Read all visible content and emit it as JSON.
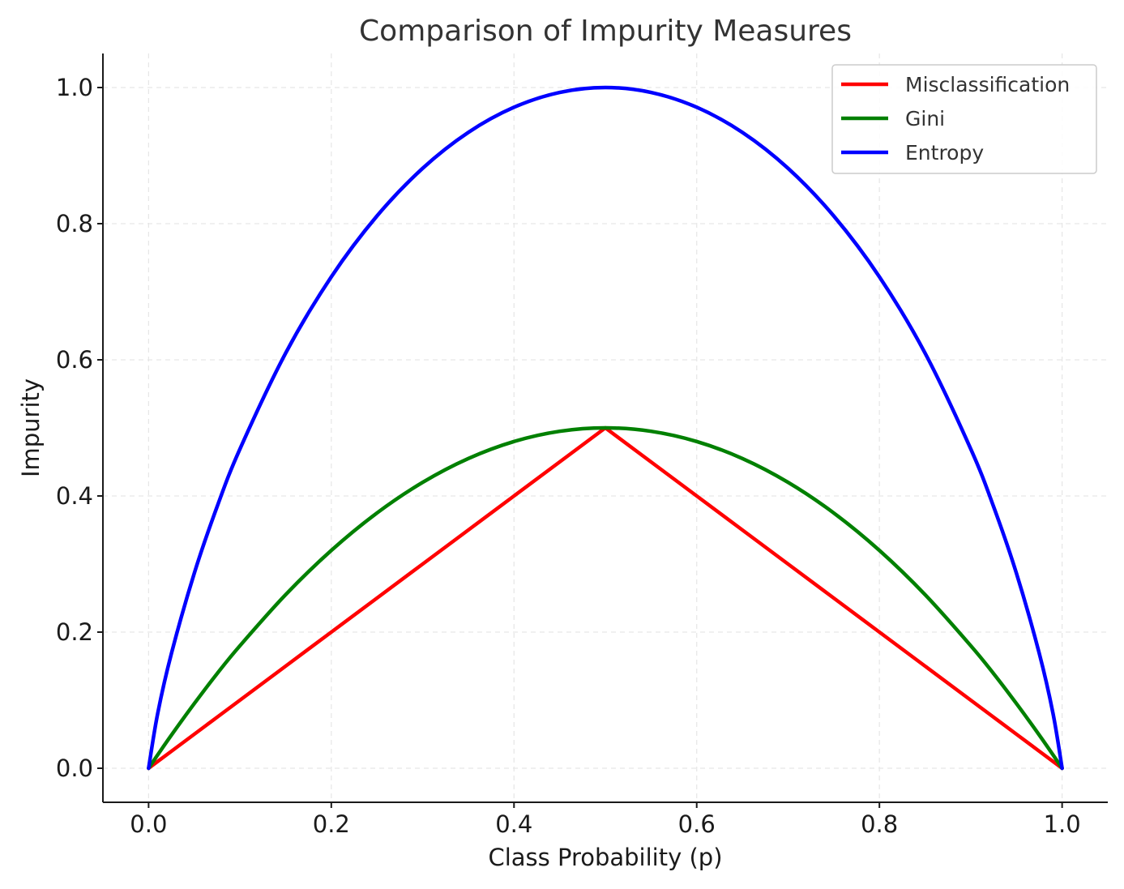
{
  "chart_data": {
    "type": "line",
    "title": "Comparison of Impurity Measures",
    "xlabel": "Class Probability (p)",
    "ylabel": "Impurity",
    "xlim": [
      -0.05,
      1.05
    ],
    "ylim": [
      -0.05,
      1.05
    ],
    "xticks": [
      "0.0",
      "0.2",
      "0.4",
      "0.6",
      "0.8",
      "1.0"
    ],
    "xtick_values": [
      0.0,
      0.2,
      0.4,
      0.6,
      0.8,
      1.0
    ],
    "yticks": [
      "0.0",
      "0.2",
      "0.4",
      "0.6",
      "0.8",
      "1.0"
    ],
    "ytick_values": [
      0.0,
      0.2,
      0.4,
      0.6,
      0.8,
      1.0
    ],
    "grid": true,
    "legend_position": "top-right",
    "x": [
      0.0,
      0.01,
      0.025,
      0.05,
      0.075,
      0.1,
      0.15,
      0.2,
      0.25,
      0.3,
      0.35,
      0.4,
      0.45,
      0.5,
      0.55,
      0.6,
      0.65,
      0.7,
      0.75,
      0.8,
      0.85,
      0.9,
      0.925,
      0.95,
      0.975,
      0.99,
      1.0
    ],
    "series": [
      {
        "name": "Misclassification",
        "color": "#ff0000",
        "values": [
          0.0,
          0.01,
          0.025,
          0.05,
          0.075,
          0.1,
          0.15,
          0.2,
          0.25,
          0.3,
          0.35,
          0.4,
          0.45,
          0.5,
          0.45,
          0.4,
          0.35,
          0.3,
          0.25,
          0.2,
          0.15,
          0.1,
          0.075,
          0.05,
          0.025,
          0.01,
          0.0
        ]
      },
      {
        "name": "Gini",
        "color": "#008000",
        "values": [
          0.0,
          0.0198,
          0.0488,
          0.095,
          0.139,
          0.18,
          0.255,
          0.32,
          0.375,
          0.42,
          0.455,
          0.48,
          0.495,
          0.5,
          0.495,
          0.48,
          0.455,
          0.42,
          0.375,
          0.32,
          0.255,
          0.18,
          0.139,
          0.095,
          0.0488,
          0.0198,
          0.0
        ]
      },
      {
        "name": "Entropy",
        "color": "#0000ff",
        "values": [
          0.0,
          0.0808,
          0.1687,
          0.2864,
          0.3843,
          0.469,
          0.6098,
          0.7219,
          0.8113,
          0.8813,
          0.9341,
          0.971,
          0.9928,
          1.0,
          0.9928,
          0.971,
          0.9341,
          0.8813,
          0.8113,
          0.7219,
          0.6098,
          0.469,
          0.3843,
          0.2864,
          0.1687,
          0.0808,
          0.0
        ]
      }
    ]
  }
}
